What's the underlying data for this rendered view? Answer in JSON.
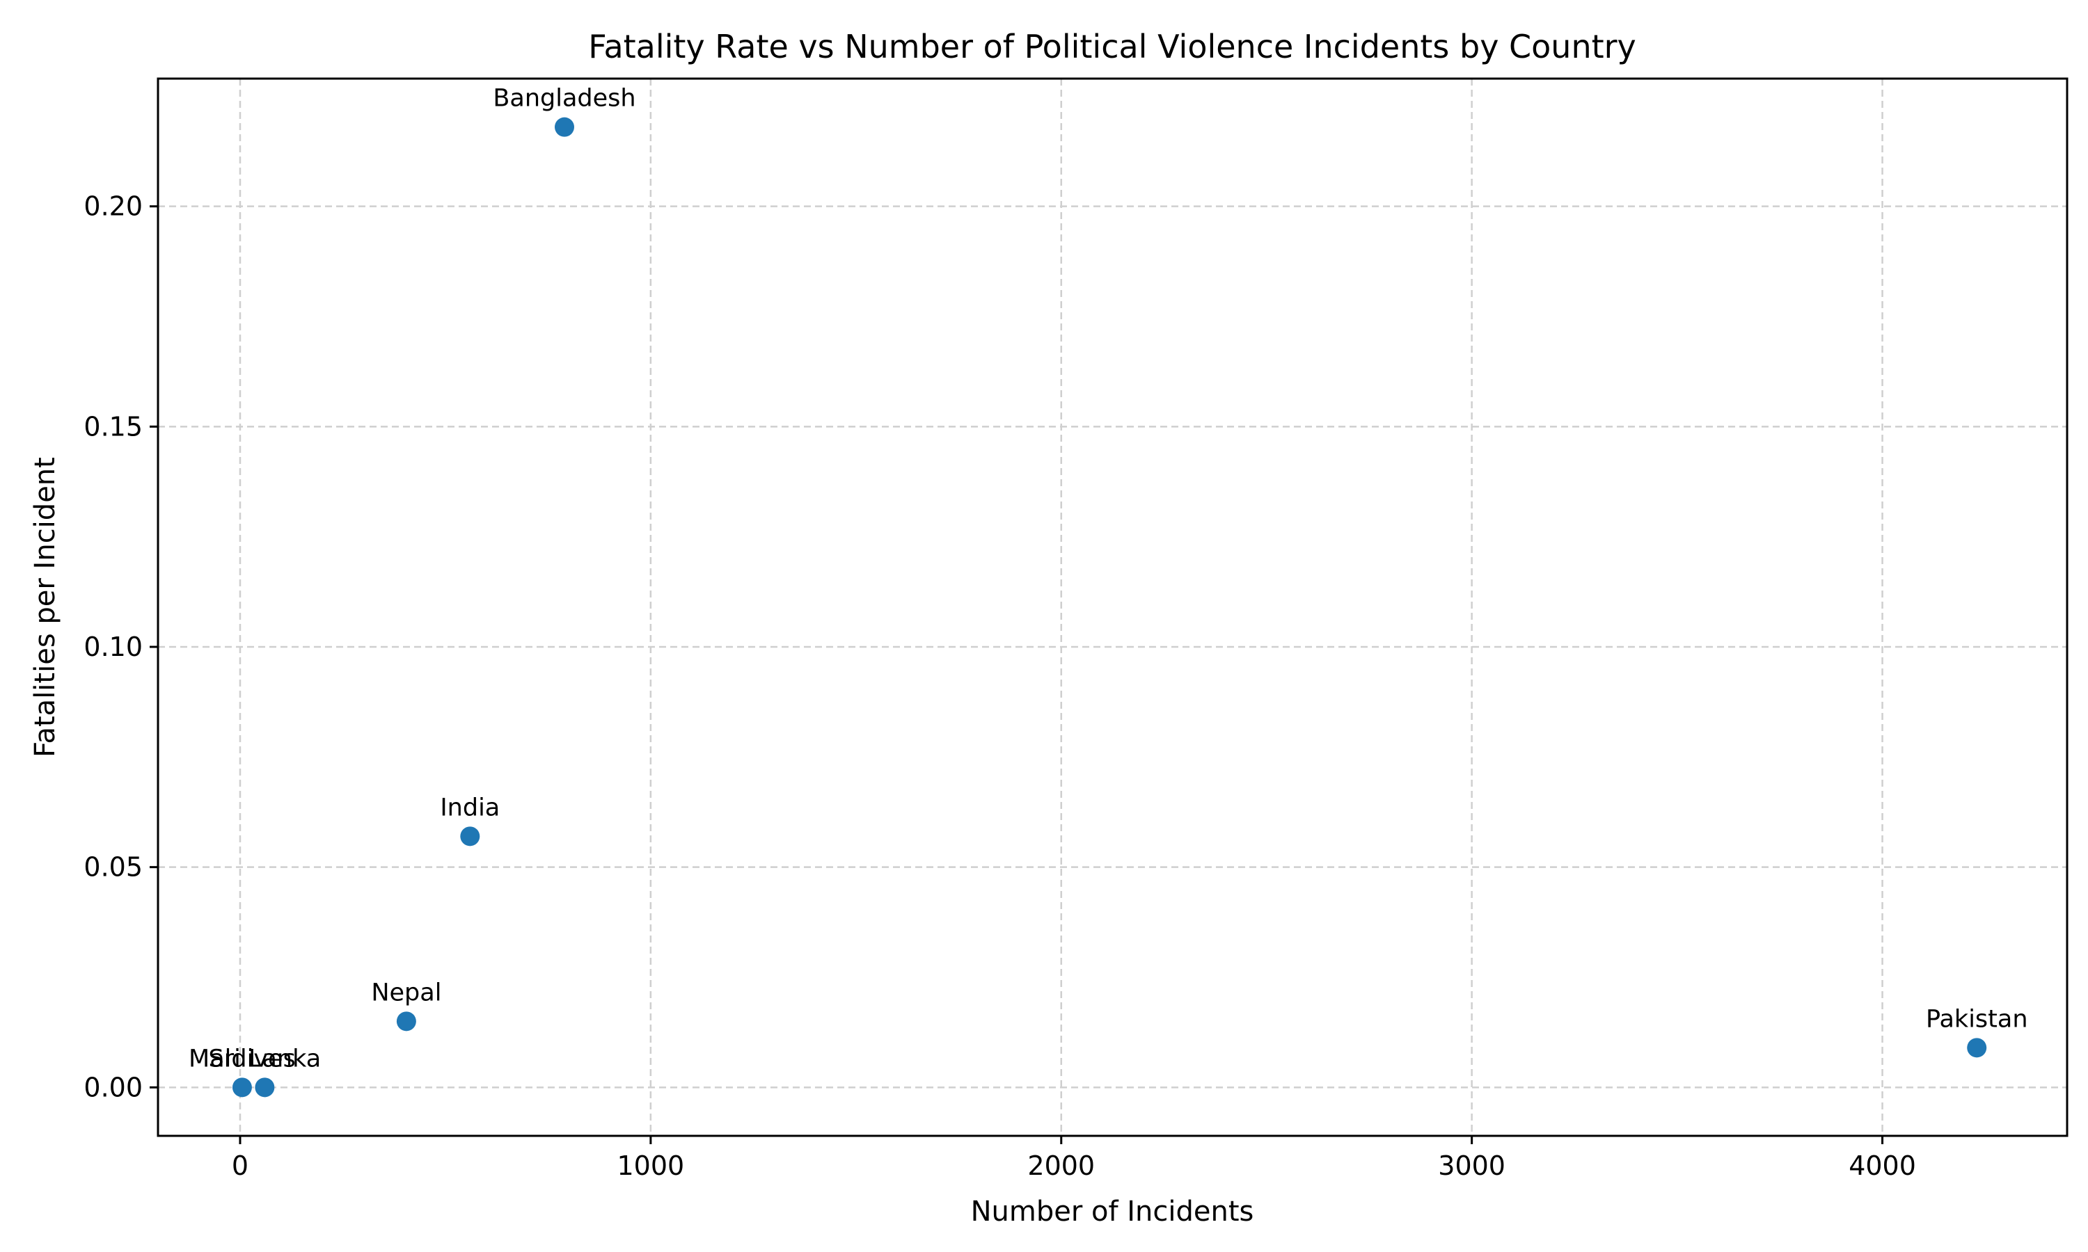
{
  "chart_data": {
    "type": "scatter",
    "title": "Fatality Rate vs Number of Political Violence Incidents by Country",
    "xlabel": "Number of Incidents",
    "ylabel": "Fatalities per Incident",
    "xlim": [
      -200,
      4450
    ],
    "ylim": [
      -0.011,
      0.229
    ],
    "xticks": [
      0,
      1000,
      2000,
      3000,
      4000
    ],
    "xtick_labels": [
      "0",
      "1000",
      "2000",
      "3000",
      "4000"
    ],
    "yticks": [
      0.0,
      0.05,
      0.1,
      0.15,
      0.2
    ],
    "ytick_labels": [
      "0.00",
      "0.05",
      "0.10",
      "0.15",
      "0.20"
    ],
    "grid": true,
    "marker_color": "#1f77b4",
    "points": [
      {
        "label": "Bangladesh",
        "x": 790,
        "y": 0.218
      },
      {
        "label": "India",
        "x": 560,
        "y": 0.057
      },
      {
        "label": "Nepal",
        "x": 405,
        "y": 0.015
      },
      {
        "label": "Maldives",
        "x": 5,
        "y": 0.0
      },
      {
        "label": "Sri Lanka",
        "x": 60,
        "y": 0.0
      },
      {
        "label": "Pakistan",
        "x": 4230,
        "y": 0.009
      }
    ]
  }
}
